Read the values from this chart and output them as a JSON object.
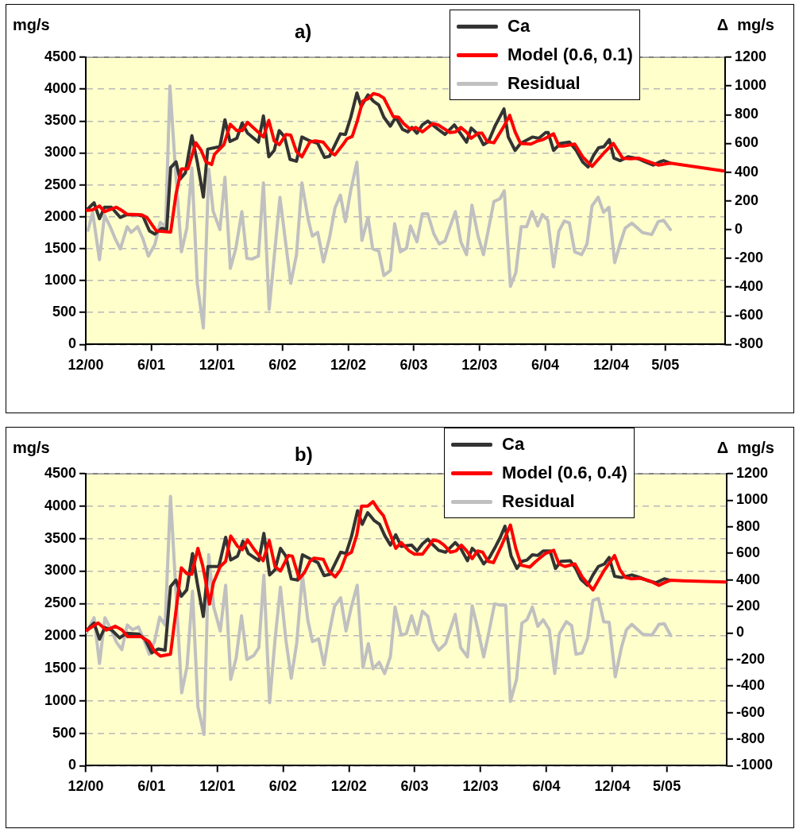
{
  "chart_data": [
    {
      "type": "line",
      "title": "a)",
      "ylabel": "mg/s",
      "y2label": "Δ mg/s",
      "grid": "y",
      "legend": "top right",
      "marker": "none",
      "line_style": "solid",
      "xlim": [
        "2000-12-01",
        "2005-10-14"
      ],
      "xticks": [
        {
          "value": "2000-12",
          "label": "12/00"
        },
        {
          "value": "2001-06",
          "label": "6/01"
        },
        {
          "value": "2001-12",
          "label": "12/01"
        },
        {
          "value": "2002-06",
          "label": "6/02"
        },
        {
          "value": "2002-12",
          "label": "12/02"
        },
        {
          "value": "2003-06",
          "label": "6/03"
        },
        {
          "value": "2003-12",
          "label": "12/03"
        },
        {
          "value": "2004-06",
          "label": "6/04"
        },
        {
          "value": "2004-12",
          "label": "12/04"
        },
        {
          "value": "2005-05",
          "label": "5/05"
        }
      ],
      "ylim": [
        0,
        4500
      ],
      "yticks": [
        0,
        500,
        1000,
        1500,
        2000,
        2500,
        3000,
        3500,
        4000,
        4500
      ],
      "y2lim": [
        -800,
        1200
      ],
      "y2ticks": [
        -800,
        -600,
        -400,
        -200,
        0,
        200,
        400,
        600,
        800,
        1000,
        1200
      ],
      "series": [
        {
          "name": "Ca",
          "color": "#333333",
          "x": [
            "2000-12-04",
            "2000-12-24",
            "2001-01-08",
            "2001-01-22",
            "2001-02-10",
            "2001-03-07",
            "2001-03-22",
            "2001-04-24",
            "2001-05-09",
            "2001-05-27",
            "2001-06-11",
            "2001-06-30",
            "2001-07-14",
            "2001-07-25",
            "2001-08-09",
            "2001-08-20",
            "2001-09-04",
            "2001-09-22",
            "2001-10-07",
            "2001-10-24",
            "2001-11-05",
            "2001-12-09",
            "2001-12-23",
            "2002-01-06",
            "2002-01-25",
            "2002-02-09",
            "2002-02-24",
            "2002-03-26",
            "2002-04-09",
            "2002-04-24",
            "2002-05-09",
            "2002-05-23",
            "2002-06-07",
            "2002-06-22",
            "2002-07-10",
            "2002-07-25",
            "2002-08-16",
            "2002-09-07",
            "2002-09-26",
            "2002-10-10",
            "2002-11-09",
            "2002-11-23",
            "2002-12-08",
            "2002-12-25",
            "2003-01-06",
            "2003-01-25",
            "2003-02-09",
            "2003-02-24",
            "2003-03-10",
            "2003-03-28",
            "2003-04-12",
            "2003-05-01",
            "2003-05-16",
            "2003-05-27",
            "2003-06-10",
            "2003-06-25",
            "2003-07-10",
            "2003-07-24",
            "2003-08-08",
            "2003-08-27",
            "2003-09-22",
            "2003-10-06",
            "2003-10-26",
            "2003-11-08",
            "2003-11-27",
            "2003-12-12",
            "2003-12-26",
            "2004-01-13",
            "2004-01-27",
            "2004-02-07",
            "2004-02-19",
            "2004-03-09",
            "2004-03-24",
            "2004-04-26",
            "2004-05-14",
            "2004-06-02",
            "2004-06-09",
            "2004-06-24",
            "2004-07-13",
            "2004-08-07",
            "2004-08-26",
            "2004-09-13",
            "2004-09-28",
            "2004-10-13",
            "2004-10-27",
            "2004-11-11",
            "2004-11-26",
            "2004-12-09",
            "2004-12-26",
            "2005-01-17",
            "2005-02-15",
            "2005-03-06",
            "2005-03-28",
            "2005-04-15",
            "2005-04-26",
            "2005-05-15"
          ],
          "values": [
            2110,
            2220,
            1970,
            2150,
            2150,
            1990,
            2030,
            2030,
            2010,
            1780,
            1730,
            1820,
            1800,
            2770,
            2860,
            2590,
            2690,
            3270,
            2860,
            2310,
            3060,
            3100,
            3520,
            3180,
            3230,
            3470,
            3310,
            3170,
            3580,
            2940,
            3040,
            3350,
            3250,
            2900,
            2870,
            3250,
            3190,
            3150,
            2930,
            2950,
            3300,
            3290,
            3560,
            3940,
            3730,
            3910,
            3810,
            3750,
            3560,
            3420,
            3560,
            3370,
            3330,
            3400,
            3310,
            3440,
            3500,
            3440,
            3370,
            3290,
            3440,
            3330,
            3170,
            3390,
            3290,
            3130,
            3180,
            3420,
            3570,
            3690,
            3250,
            3040,
            3150,
            3250,
            3230,
            3320,
            3320,
            3040,
            3150,
            3170,
            3040,
            2860,
            2780,
            2960,
            3080,
            3100,
            3210,
            2920,
            2880,
            2940,
            2910,
            2860,
            2810,
            2860,
            2880,
            2840
          ]
        },
        {
          "name": "Model (0.6, 0.1)",
          "color": "#ff0000",
          "x": [
            "2000-12-04",
            "2000-12-20",
            "2001-01-08",
            "2001-01-22",
            "2001-02-24",
            "2001-03-11",
            "2001-03-26",
            "2001-05-05",
            "2001-05-20",
            "2001-06-15",
            "2001-07-25",
            "2001-08-09",
            "2001-08-24",
            "2001-09-11",
            "2001-10-03",
            "2001-10-18",
            "2001-10-31",
            "2001-11-16",
            "2001-11-24",
            "2001-12-20",
            "2002-01-07",
            "2002-01-25",
            "2002-02-09",
            "2002-02-24",
            "2002-04-09",
            "2002-04-24",
            "2002-05-09",
            "2002-05-23",
            "2002-06-11",
            "2002-06-24",
            "2002-07-10",
            "2002-07-25",
            "2002-08-16",
            "2002-08-31",
            "2002-09-22",
            "2002-10-18",
            "2002-10-25",
            "2002-11-16",
            "2002-11-27",
            "2002-12-12",
            "2002-12-26",
            "2003-01-10",
            "2003-01-25",
            "2003-02-09",
            "2003-02-24",
            "2003-03-10",
            "2003-04-05",
            "2003-04-20",
            "2003-05-04",
            "2003-05-23",
            "2003-06-07",
            "2003-06-25",
            "2003-07-24",
            "2003-08-08",
            "2003-09-10",
            "2003-09-25",
            "2003-10-10",
            "2003-10-25",
            "2003-11-08",
            "2003-11-27",
            "2003-12-08",
            "2003-12-22",
            "2004-01-10",
            "2004-02-05",
            "2004-02-23",
            "2004-03-09",
            "2004-03-24",
            "2004-04-22",
            "2004-05-11",
            "2004-05-26",
            "2004-06-24",
            "2004-07-09",
            "2004-07-24",
            "2004-08-22",
            "2004-09-13",
            "2004-10-09",
            "2004-11-11",
            "2004-12-07",
            "2005-01-02",
            "2005-01-24",
            "2005-02-15",
            "2005-03-17",
            "2005-04-11",
            "2005-05-15",
            "2005-10-09"
          ],
          "values": [
            2100,
            2110,
            2170,
            2080,
            2150,
            2100,
            2040,
            2030,
            1990,
            1780,
            1760,
            2360,
            2750,
            2750,
            3160,
            3040,
            2860,
            2820,
            2980,
            3130,
            3450,
            3350,
            3350,
            3480,
            3250,
            3510,
            3190,
            3130,
            3290,
            3280,
            3020,
            2940,
            3170,
            3190,
            3170,
            2990,
            2970,
            3130,
            3220,
            3260,
            3500,
            3810,
            3850,
            3930,
            3910,
            3860,
            3570,
            3560,
            3460,
            3370,
            3400,
            3330,
            3460,
            3440,
            3320,
            3330,
            3400,
            3330,
            3230,
            3310,
            3310,
            3180,
            3160,
            3400,
            3590,
            3330,
            3150,
            3140,
            3190,
            3210,
            3300,
            3110,
            3110,
            3140,
            2940,
            2790,
            3000,
            3150,
            2920,
            2910,
            2920,
            2860,
            2810,
            2840,
            2720
          ]
        },
        {
          "name": "Residual",
          "color": "#c0c0c0",
          "axis": "y2",
          "x": [
            "2000-12-07",
            "2000-12-20",
            "2001-01-08",
            "2001-01-22",
            "2001-02-06",
            "2001-02-21",
            "2001-03-07",
            "2001-03-26",
            "2001-04-06",
            "2001-04-24",
            "2001-05-09",
            "2001-05-24",
            "2001-06-11",
            "2001-06-26",
            "2001-07-11",
            "2001-07-23",
            "2001-08-05",
            "2001-08-24",
            "2001-09-08",
            "2001-09-22",
            "2001-10-07",
            "2001-10-24",
            "2001-11-08",
            "2001-11-20",
            "2001-12-09",
            "2001-12-23",
            "2002-01-07",
            "2002-01-22",
            "2002-02-08",
            "2002-02-22",
            "2002-03-08",
            "2002-03-26",
            "2002-04-09",
            "2002-04-25",
            "2002-05-25",
            "2002-06-24",
            "2002-07-10",
            "2002-07-25",
            "2002-08-12",
            "2002-08-23",
            "2002-09-07",
            "2002-09-23",
            "2002-10-10",
            "2002-10-25",
            "2002-11-09",
            "2002-11-23",
            "2002-12-08",
            "2002-12-25",
            "2003-01-08",
            "2003-01-25",
            "2003-02-07",
            "2003-02-24",
            "2003-03-10",
            "2003-03-28",
            "2003-04-09",
            "2003-04-25",
            "2003-05-12",
            "2003-05-23",
            "2003-06-10",
            "2003-06-25",
            "2003-07-10",
            "2003-07-27",
            "2003-08-11",
            "2003-08-27",
            "2003-09-25",
            "2003-10-10",
            "2003-10-26",
            "2003-11-10",
            "2003-11-27",
            "2003-12-12",
            "2004-01-10",
            "2004-01-27",
            "2004-02-08",
            "2004-02-25",
            "2004-03-11",
            "2004-03-26",
            "2004-04-10",
            "2004-04-25",
            "2004-05-11",
            "2004-05-24",
            "2004-06-08",
            "2004-06-24",
            "2004-07-09",
            "2004-07-24",
            "2004-08-07",
            "2004-08-22",
            "2004-09-10",
            "2004-09-25",
            "2004-10-09",
            "2004-10-26",
            "2004-11-10",
            "2004-11-25",
            "2004-12-11",
            "2004-12-26",
            "2005-01-09",
            "2005-01-28",
            "2005-02-26",
            "2005-03-24",
            "2005-04-11",
            "2005-04-26",
            "2005-05-15"
          ],
          "values": [
            -5,
            120,
            -210,
            100,
            25,
            -65,
            -135,
            20,
            -20,
            20,
            -65,
            -185,
            -105,
            50,
            20,
            1000,
            505,
            -155,
            10,
            430,
            -375,
            -685,
            420,
            130,
            0,
            365,
            -270,
            -135,
            125,
            -200,
            -205,
            -185,
            325,
            -555,
            225,
            -375,
            -175,
            325,
            65,
            -45,
            -20,
            -225,
            -55,
            150,
            240,
            55,
            275,
            470,
            -75,
            85,
            -135,
            -150,
            -320,
            -285,
            40,
            -155,
            -130,
            25,
            -85,
            110,
            110,
            -30,
            -100,
            -80,
            125,
            -85,
            -175,
            170,
            -45,
            -175,
            195,
            215,
            270,
            -395,
            -300,
            20,
            20,
            125,
            25,
            105,
            65,
            -260,
            -10,
            60,
            45,
            -155,
            -175,
            -100,
            165,
            225,
            120,
            155,
            -230,
            -100,
            10,
            45,
            -20,
            -35,
            55,
            65,
            0
          ]
        }
      ]
    },
    {
      "type": "line",
      "title": "b)",
      "ylabel": "mg/s",
      "y2label": "Δ mg/s",
      "grid": "y",
      "legend": "top right",
      "marker": "none",
      "line_style": "solid",
      "xlim": [
        "2000-12-01",
        "2005-10-14"
      ],
      "xticks": [
        {
          "value": "2000-12",
          "label": "12/00"
        },
        {
          "value": "2001-06",
          "label": "6/01"
        },
        {
          "value": "2001-12",
          "label": "12/01"
        },
        {
          "value": "2002-06",
          "label": "6/02"
        },
        {
          "value": "2002-12",
          "label": "12/02"
        },
        {
          "value": "2003-06",
          "label": "6/03"
        },
        {
          "value": "2003-12",
          "label": "12/03"
        },
        {
          "value": "2004-06",
          "label": "6/04"
        },
        {
          "value": "2004-12",
          "label": "12/04"
        },
        {
          "value": "2005-05",
          "label": "5/05"
        }
      ],
      "ylim": [
        0,
        4500
      ],
      "yticks": [
        0,
        500,
        1000,
        1500,
        2000,
        2500,
        3000,
        3500,
        4000,
        4500
      ],
      "y2lim": [
        -1000,
        1200
      ],
      "y2ticks": [
        -1000,
        -800,
        -600,
        -400,
        -200,
        0,
        200,
        400,
        600,
        800,
        1000,
        1200
      ],
      "series": [
        {
          "name": "Ca",
          "color": "#333333",
          "x": [
            "2000-12-04",
            "2000-12-24",
            "2001-01-08",
            "2001-01-23",
            "2001-02-11",
            "2001-03-05",
            "2001-03-23",
            "2001-04-26",
            "2001-05-14",
            "2001-06-02",
            "2001-06-20",
            "2001-07-09",
            "2001-07-24",
            "2001-08-08",
            "2001-08-23",
            "2001-09-07",
            "2001-09-23",
            "2001-10-06",
            "2001-10-23",
            "2001-11-05",
            "2001-12-05",
            "2001-12-24",
            "2002-01-07",
            "2002-01-26",
            "2002-02-10",
            "2002-02-25",
            "2002-03-26",
            "2002-04-09",
            "2002-04-25",
            "2002-05-10",
            "2002-05-25",
            "2002-06-09",
            "2002-06-24",
            "2002-07-12",
            "2002-07-25",
            "2002-08-15",
            "2002-09-06",
            "2002-09-23",
            "2002-10-09",
            "2002-11-08",
            "2002-11-23",
            "2002-12-08",
            "2002-12-25",
            "2003-01-07",
            "2003-01-22",
            "2003-02-09",
            "2003-02-24",
            "2003-03-11",
            "2003-03-26",
            "2003-04-10",
            "2003-04-25",
            "2003-05-24",
            "2003-06-08",
            "2003-06-23",
            "2003-07-08",
            "2003-07-23",
            "2003-08-07",
            "2003-08-26",
            "2003-09-22",
            "2003-10-07",
            "2003-10-26",
            "2003-11-08",
            "2003-11-23",
            "2003-12-10",
            "2003-12-26",
            "2004-01-12",
            "2004-01-25",
            "2004-02-07",
            "2004-02-24",
            "2004-03-11",
            "2004-03-25",
            "2004-04-08",
            "2004-04-23",
            "2004-05-08",
            "2004-05-23",
            "2004-06-11",
            "2004-06-26",
            "2004-07-11",
            "2004-08-06",
            "2004-08-21",
            "2004-09-05",
            "2004-09-23",
            "2004-10-08",
            "2004-10-23",
            "2004-11-09",
            "2004-11-22",
            "2004-12-07",
            "2004-12-26",
            "2005-01-24",
            "2005-02-16",
            "2005-03-10",
            "2005-04-01",
            "2005-04-24",
            "2005-05-08"
          ],
          "values": [
            2090,
            2200,
            1950,
            2130,
            2090,
            1970,
            2040,
            2030,
            1950,
            1740,
            1800,
            1780,
            2760,
            2860,
            2610,
            2710,
            3270,
            2820,
            2300,
            3070,
            3070,
            3520,
            3170,
            3230,
            3460,
            3270,
            3160,
            3580,
            2940,
            3020,
            3350,
            3230,
            2880,
            2860,
            3250,
            3190,
            3130,
            2930,
            2950,
            3290,
            3270,
            3530,
            3930,
            3720,
            3900,
            3780,
            3720,
            3540,
            3400,
            3560,
            3380,
            3400,
            3310,
            3420,
            3490,
            3400,
            3320,
            3290,
            3440,
            3350,
            3160,
            3350,
            3270,
            3110,
            3210,
            3380,
            3520,
            3690,
            3230,
            3040,
            3150,
            3170,
            3250,
            3240,
            3310,
            3310,
            3040,
            3150,
            3160,
            3040,
            2870,
            2780,
            2940,
            3070,
            3110,
            3210,
            2920,
            2900,
            2940,
            2900,
            2850,
            2820,
            2880,
            2860
          ]
        },
        {
          "name": "Model (0.6, 0.4)",
          "color": "#ff0000",
          "x": [
            "2000-12-04",
            "2001-01-04",
            "2001-01-27",
            "2001-02-21",
            "2001-03-12",
            "2001-03-27",
            "2001-05-03",
            "2001-05-26",
            "2001-06-10",
            "2001-06-26",
            "2001-07-24",
            "2001-08-08",
            "2001-08-23",
            "2001-09-07",
            "2001-09-21",
            "2001-10-08",
            "2001-10-21",
            "2001-10-29",
            "2001-11-09",
            "2001-11-20",
            "2001-12-09",
            "2001-12-24",
            "2002-01-07",
            "2002-01-26",
            "2002-02-08",
            "2002-02-23",
            "2002-03-15",
            "2002-04-07",
            "2002-04-24",
            "2002-05-10",
            "2002-05-25",
            "2002-06-16",
            "2002-06-27",
            "2002-07-16",
            "2002-07-31",
            "2002-08-15",
            "2002-08-26",
            "2002-09-21",
            "2002-10-06",
            "2002-10-24",
            "2002-11-08",
            "2002-11-23",
            "2002-12-08",
            "2002-12-23",
            "2003-01-05",
            "2003-01-22",
            "2003-02-06",
            "2003-02-20",
            "2003-03-07",
            "2003-03-22",
            "2003-04-10",
            "2003-04-25",
            "2003-05-17",
            "2003-06-01",
            "2003-06-23",
            "2003-07-23",
            "2003-08-07",
            "2003-08-22",
            "2003-09-09",
            "2003-09-24",
            "2003-10-09",
            "2003-10-24",
            "2003-11-08",
            "2003-11-23",
            "2003-12-07",
            "2003-12-22",
            "2004-01-06",
            "2004-01-29",
            "2004-02-22",
            "2004-03-08",
            "2004-03-23",
            "2004-04-16",
            "2004-05-01",
            "2004-05-16",
            "2004-05-29",
            "2004-06-21",
            "2004-07-06",
            "2004-07-22",
            "2004-08-19",
            "2004-09-08",
            "2004-09-20",
            "2004-10-08",
            "2004-11-07",
            "2004-12-07",
            "2004-12-22",
            "2005-01-06",
            "2005-01-23",
            "2005-02-16",
            "2005-03-14",
            "2005-04-09",
            "2005-04-24",
            "2005-05-12",
            "2005-06-15",
            "2005-10-10"
          ],
          "values": [
            2090,
            2200,
            2090,
            2150,
            2090,
            1990,
            1990,
            1910,
            1760,
            1690,
            1720,
            2380,
            3050,
            2960,
            2950,
            3350,
            3090,
            2860,
            2490,
            2820,
            3070,
            3150,
            3540,
            3380,
            3330,
            3480,
            3320,
            3160,
            3470,
            3070,
            3000,
            3240,
            3230,
            2880,
            2980,
            3150,
            3200,
            3180,
            3000,
            2910,
            3020,
            3240,
            3290,
            3560,
            4000,
            4000,
            4070,
            3950,
            3850,
            3620,
            3350,
            3440,
            3310,
            3260,
            3260,
            3480,
            3460,
            3400,
            3290,
            3310,
            3400,
            3310,
            3190,
            3310,
            3290,
            3150,
            3130,
            3400,
            3710,
            3350,
            3090,
            3060,
            3140,
            3210,
            3270,
            3320,
            3110,
            3070,
            3110,
            2910,
            2830,
            2710,
            3000,
            3240,
            3020,
            2900,
            2880,
            2890,
            2850,
            2780,
            2820,
            2860,
            2850,
            2830
          ]
        },
        {
          "name": "Residual",
          "color": "#c0c0c0",
          "axis": "y2",
          "x": [
            "2000-12-04",
            "2000-12-24",
            "2001-01-08",
            "2001-01-23",
            "2001-02-11",
            "2001-02-24",
            "2001-03-11",
            "2001-03-26",
            "2001-04-10",
            "2001-04-26",
            "2001-05-11",
            "2001-05-26",
            "2001-06-10",
            "2001-06-24",
            "2001-07-09",
            "2001-07-24",
            "2001-08-08",
            "2001-08-24",
            "2001-09-08",
            "2001-09-23",
            "2001-10-08",
            "2001-10-25",
            "2001-11-07",
            "2001-11-21",
            "2001-12-09",
            "2001-12-24",
            "2002-01-07",
            "2002-01-22",
            "2002-02-06",
            "2002-02-21",
            "2002-03-12",
            "2002-03-26",
            "2002-04-09",
            "2002-04-25",
            "2002-05-10",
            "2002-05-25",
            "2002-06-09",
            "2002-06-24",
            "2002-07-09",
            "2002-07-25",
            "2002-08-09",
            "2002-08-22",
            "2002-09-08",
            "2002-09-23",
            "2002-10-07",
            "2002-10-22",
            "2002-11-08",
            "2002-11-23",
            "2002-12-08",
            "2002-12-24",
            "2003-01-09",
            "2003-01-24",
            "2003-02-06",
            "2003-02-23",
            "2003-03-10",
            "2003-03-26",
            "2003-04-08",
            "2003-04-25",
            "2003-05-09",
            "2003-05-24",
            "2003-06-08",
            "2003-06-23",
            "2003-07-08",
            "2003-07-23",
            "2003-08-07",
            "2003-08-26",
            "2003-09-22",
            "2003-10-07",
            "2003-10-26",
            "2003-11-08",
            "2003-11-23",
            "2003-12-10",
            "2003-12-25",
            "2004-01-09",
            "2004-01-25",
            "2004-02-09",
            "2004-02-22",
            "2004-03-10",
            "2004-03-25",
            "2004-04-08",
            "2004-04-23",
            "2004-05-08",
            "2004-05-23",
            "2004-06-09",
            "2004-06-24",
            "2004-07-07",
            "2004-07-26",
            "2004-08-10",
            "2004-08-22",
            "2004-09-08",
            "2004-09-23",
            "2004-10-08",
            "2004-10-23",
            "2004-11-07",
            "2004-11-22",
            "2004-12-09",
            "2004-12-26",
            "2005-01-09",
            "2005-01-24",
            "2005-02-23",
            "2005-03-21",
            "2005-04-09",
            "2005-04-24",
            "2005-05-12"
          ],
          "values": [
            5,
            115,
            -230,
            115,
            15,
            -70,
            -125,
            60,
            25,
            45,
            -50,
            -160,
            -60,
            120,
            60,
            1030,
            315,
            -450,
            -250,
            315,
            -555,
            -765,
            590,
            195,
            15,
            360,
            -350,
            -190,
            130,
            -200,
            -170,
            -110,
            435,
            -525,
            -50,
            345,
            -50,
            -340,
            -80,
            440,
            95,
            -65,
            -45,
            -240,
            -5,
            200,
            265,
            15,
            200,
            360,
            -260,
            -80,
            -270,
            -220,
            -305,
            -180,
            195,
            -15,
            -5,
            130,
            -10,
            165,
            125,
            -60,
            -130,
            -80,
            140,
            -110,
            -180,
            205,
            35,
            -180,
            15,
            220,
            210,
            210,
            -515,
            -350,
            75,
            100,
            195,
            50,
            100,
            25,
            -305,
            -5,
            85,
            55,
            -160,
            -150,
            -40,
            245,
            260,
            85,
            80,
            -330,
            -110,
            25,
            65,
            -10,
            -15,
            65,
            70,
            -20
          ]
        }
      ]
    }
  ]
}
